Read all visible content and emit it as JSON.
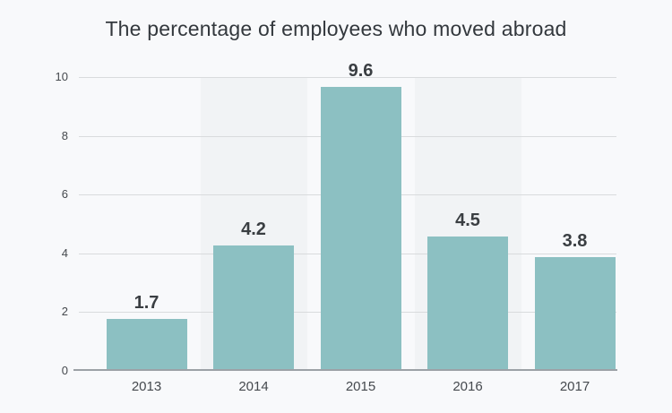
{
  "chart_data": {
    "type": "bar",
    "title": "The percentage of employees who moved abroad",
    "categories": [
      "2013",
      "2014",
      "2015",
      "2016",
      "2017"
    ],
    "values": [
      1.7,
      4.2,
      9.6,
      4.5,
      3.8
    ],
    "value_labels": [
      "1.7",
      "4.2",
      "9.6",
      "4.5",
      "3.8"
    ],
    "y_ticks": [
      0,
      2,
      4,
      6,
      8,
      10
    ],
    "ylim": [
      0,
      10
    ],
    "xlabel": "",
    "ylabel": "",
    "grid": true,
    "legend_position": "none",
    "band_columns": [
      1,
      3
    ],
    "colors": {
      "background": "#f8f9fb",
      "column_band": "#f1f3f5",
      "bar": "#8cc0c2",
      "gridline": "#d9dbdd",
      "axis_line": "#9ca1a6",
      "title_text": "#33383d",
      "tick_text": "#45494e",
      "value_text": "#3a3e42"
    }
  }
}
